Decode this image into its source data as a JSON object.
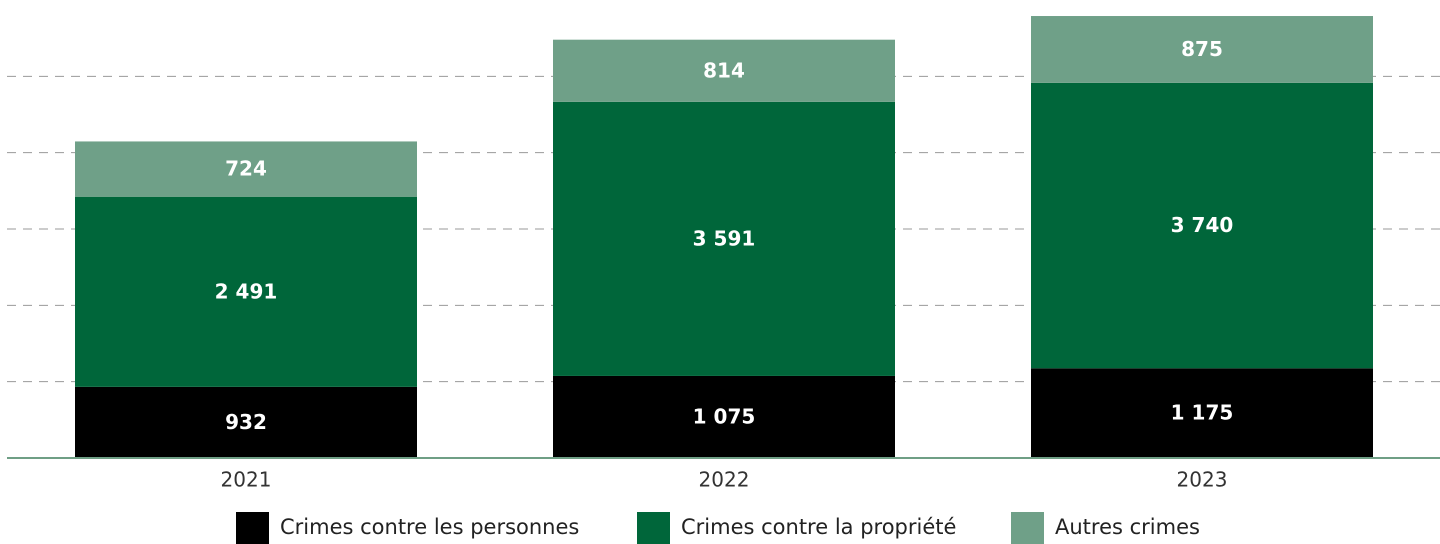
{
  "chart_data": {
    "type": "stacked_bar",
    "categories": [
      "2021",
      "2022",
      "2023"
    ],
    "series": [
      {
        "name": "Crimes contre les personnes",
        "color": "#000000",
        "values": [
          932,
          1075,
          1175
        ],
        "value_labels": [
          "932",
          "1 075",
          "1 175"
        ]
      },
      {
        "name": "Crimes contre la propriété",
        "color": "#00663a",
        "values": [
          2491,
          3591,
          3740
        ],
        "value_labels": [
          "2 491",
          "3 591",
          "3 740"
        ]
      },
      {
        "name": "Autres crimes",
        "color": "#6fa088",
        "values": [
          724,
          814,
          875
        ],
        "value_labels": [
          "724",
          "814",
          "875"
        ]
      }
    ],
    "ylim": [
      0,
      6000
    ],
    "yticks": [
      1000,
      2000,
      3000,
      4000,
      5000
    ],
    "grid": true,
    "legend": "bottom"
  }
}
